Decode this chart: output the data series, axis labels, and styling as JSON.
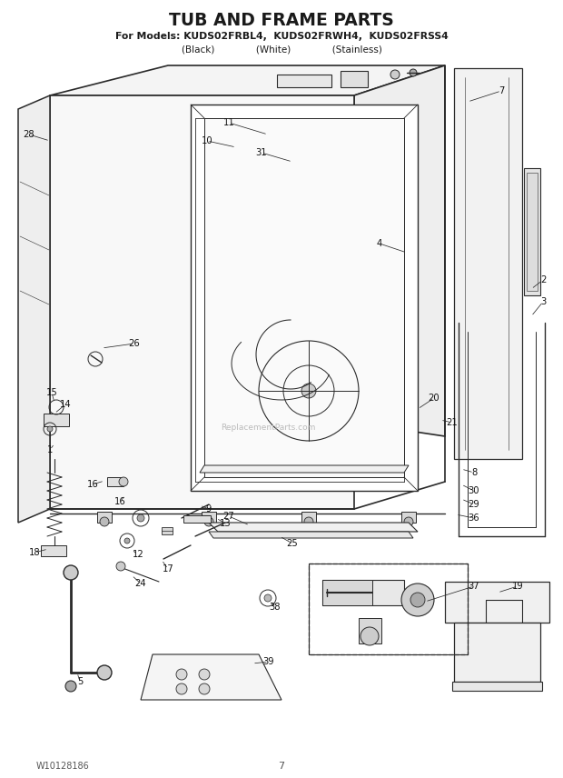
{
  "title": "TUB AND FRAME PARTS",
  "subtitle": "For Models: KUDS02FRBL4,  KUDS02FRWH4,  KUDS02FRSS4",
  "subtitle2": "(Black)              (White)              (Stainless)",
  "footer_left": "W10128186",
  "footer_center": "7",
  "bg_color": "#ffffff",
  "lc": "#2a2a2a",
  "watermark": "ReplacementParts.com",
  "fig_w": 6.2,
  "fig_h": 8.56,
  "dpi": 100
}
